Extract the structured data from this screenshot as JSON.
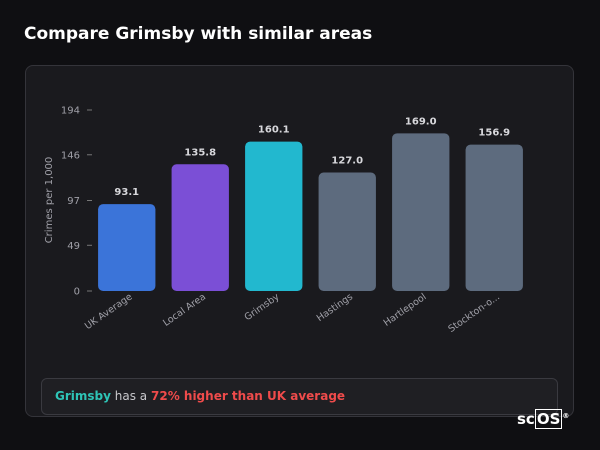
{
  "title": "Compare Grimsby with similar areas",
  "chart_data": {
    "type": "bar",
    "ylabel": "Crimes per 1,000",
    "categories": [
      "UK Average",
      "Local Area",
      "Grimsby",
      "Hastings",
      "Hartlepool",
      "Stockton-o..."
    ],
    "values": [
      93.1,
      135.8,
      160.1,
      127.0,
      169.0,
      156.9
    ],
    "value_labels": [
      "93.1",
      "135.8",
      "160.1",
      "127.0",
      "169.0",
      "156.9"
    ],
    "colors": [
      "#3b74d9",
      "#7b4fd6",
      "#22b8cf",
      "#5d6b7e",
      "#5d6b7e",
      "#5d6b7e"
    ],
    "ylim": [
      0,
      194
    ],
    "yticks": [
      0,
      49,
      97,
      146,
      194
    ]
  },
  "insight": {
    "area": "Grimsby",
    "text": "has a",
    "highlight": "72% higher than UK average"
  },
  "logo": {
    "prefix": "sc",
    "boxed": "OS",
    "mark": "®"
  }
}
